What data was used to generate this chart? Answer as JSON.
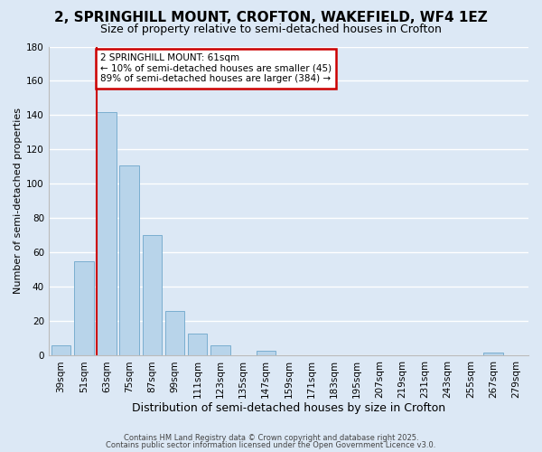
{
  "title": "2, SPRINGHILL MOUNT, CROFTON, WAKEFIELD, WF4 1EZ",
  "subtitle": "Size of property relative to semi-detached houses in Crofton",
  "xlabel": "Distribution of semi-detached houses by size in Crofton",
  "ylabel": "Number of semi-detached properties",
  "categories": [
    "39sqm",
    "51sqm",
    "63sqm",
    "75sqm",
    "87sqm",
    "99sqm",
    "111sqm",
    "123sqm",
    "135sqm",
    "147sqm",
    "159sqm",
    "171sqm",
    "183sqm",
    "195sqm",
    "207sqm",
    "219sqm",
    "231sqm",
    "243sqm",
    "255sqm",
    "267sqm",
    "279sqm"
  ],
  "values": [
    6,
    55,
    142,
    111,
    70,
    26,
    13,
    6,
    0,
    3,
    0,
    0,
    0,
    0,
    0,
    0,
    0,
    0,
    0,
    2,
    0
  ],
  "bar_color": "#b8d4ea",
  "bar_edge_color": "#7aaed0",
  "annotation_text": "2 SPRINGHILL MOUNT: 61sqm\n← 10% of semi-detached houses are smaller (45)\n89% of semi-detached houses are larger (384) →",
  "annotation_box_color": "#ffffff",
  "annotation_box_edge": "#cc0000",
  "redline_color": "#cc0000",
  "ylim": [
    0,
    180
  ],
  "yticks": [
    0,
    20,
    40,
    60,
    80,
    100,
    120,
    140,
    160,
    180
  ],
  "background_color": "#dce8f5",
  "footer1": "Contains HM Land Registry data © Crown copyright and database right 2025.",
  "footer2": "Contains public sector information licensed under the Open Government Licence v3.0.",
  "title_fontsize": 11,
  "subtitle_fontsize": 9,
  "xlabel_fontsize": 9,
  "ylabel_fontsize": 8,
  "tick_fontsize": 7.5
}
